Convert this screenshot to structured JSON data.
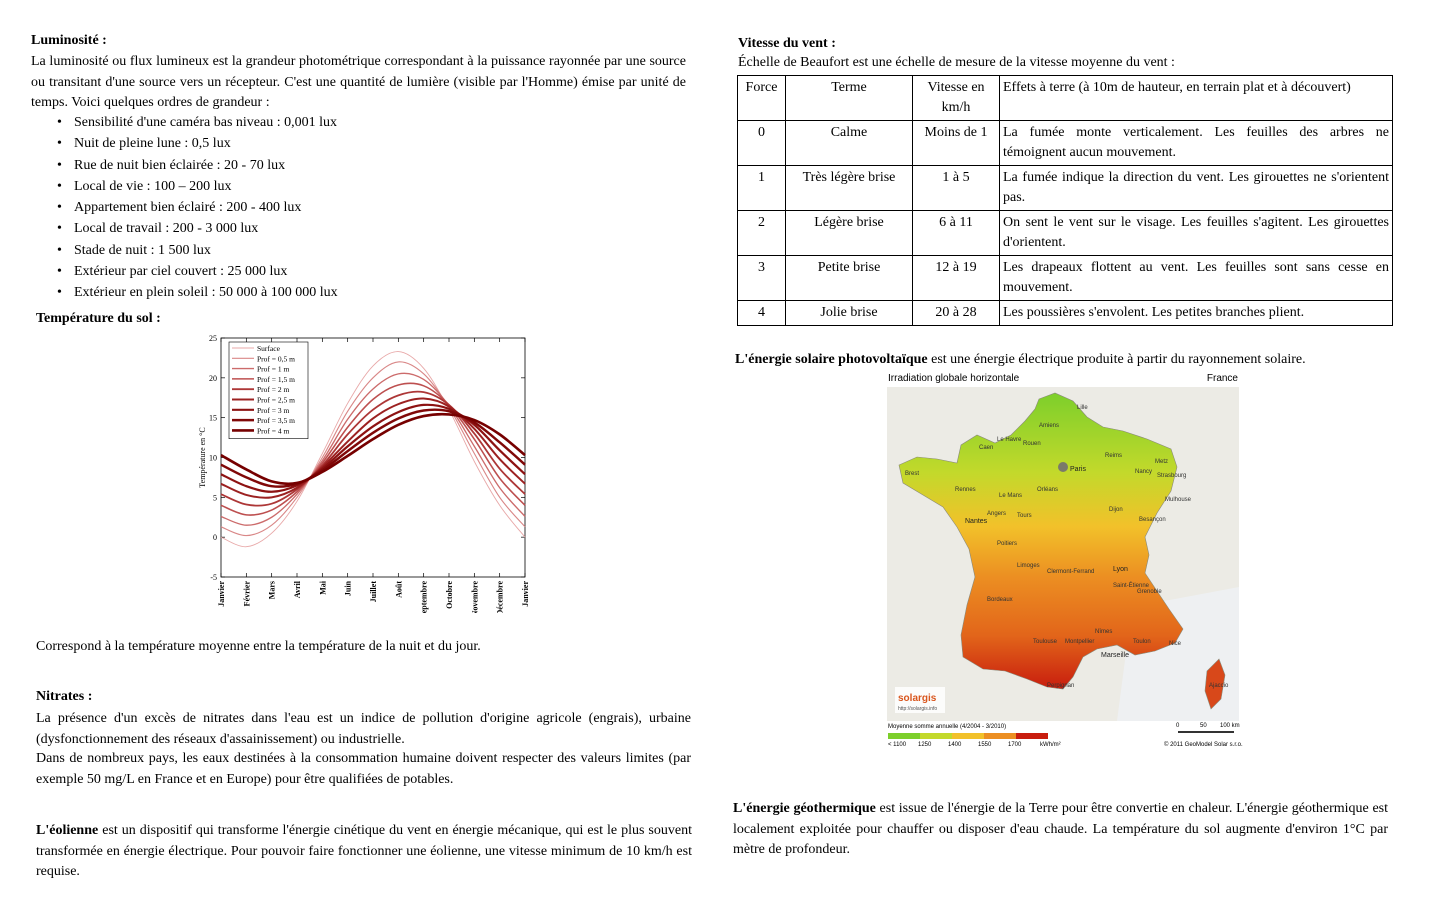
{
  "luminosite": {
    "title": "Luminosité :",
    "intro": "La luminosité ou flux lumineux est la grandeur photométrique correspondant à la puissance rayonnée   par une source ou transitant d'une source vers un récepteur. C'est une quantité de lumière (visible par l'Homme) émise par unité de temps. Voici quelques ordres de grandeur :",
    "items": [
      "Sensibilité d'une caméra bas niveau : 0,001 lux",
      "Nuit de pleine lune : 0,5 lux",
      "Rue de nuit bien éclairée : 20 - 70 lux",
      "Local de vie : 100 – 200 lux",
      "Appartement bien éclairé : 200 - 400 lux",
      "Local de travail : 200 - 3 000 lux",
      "Stade de nuit : 1 500 lux",
      "Extérieur par ciel couvert : 25 000 lux",
      "Extérieur en plein soleil : 50 000 à 100 000 lux"
    ]
  },
  "temperature": {
    "title": "Température du sol :",
    "caption": "Correspond à la température moyenne entre la température de la nuit et du jour."
  },
  "chart_data": {
    "type": "line",
    "ylabel": "Température en °C",
    "ylim": [
      -5,
      25
    ],
    "yticks": [
      "-5",
      "0",
      "5",
      "10",
      "15",
      "20",
      "25"
    ],
    "categories": [
      "Janvier",
      "Février",
      "Mars",
      "Avril",
      "Mai",
      "Juin",
      "Juillet",
      "Août",
      "Septembre",
      "Octobre",
      "Novembre",
      "Décembre",
      "Janvier"
    ],
    "legend_position": "top-left",
    "grid": false,
    "series": [
      {
        "name": "Surface",
        "color": "#e8a8a8",
        "values": [
          0.0,
          -1.2,
          0.5,
          4.5,
          10.5,
          16.8,
          21.5,
          23.3,
          21.2,
          16.0,
          9.5,
          4.0,
          0.0
        ]
      },
      {
        "name": "Prof = 0,5 m",
        "color": "#d98787",
        "values": [
          1.3,
          0.2,
          1.5,
          5.0,
          10.0,
          15.8,
          20.0,
          22.0,
          20.5,
          16.3,
          10.5,
          5.0,
          1.3
        ]
      },
      {
        "name": "Prof = 1 m",
        "color": "#cc6b6b",
        "values": [
          2.6,
          1.5,
          2.5,
          5.4,
          9.6,
          14.8,
          18.6,
          20.5,
          19.8,
          16.5,
          11.4,
          6.2,
          2.6
        ]
      },
      {
        "name": "Prof = 1,5 m",
        "color": "#bd4f4f",
        "values": [
          4.0,
          2.8,
          3.4,
          5.7,
          9.3,
          13.8,
          17.3,
          19.1,
          19.0,
          16.6,
          12.3,
          7.4,
          4.0
        ]
      },
      {
        "name": "Prof = 2 m",
        "color": "#ad3737",
        "values": [
          5.4,
          4.1,
          4.2,
          6.0,
          9.0,
          12.9,
          16.0,
          17.8,
          18.2,
          16.6,
          13.0,
          8.6,
          5.4
        ]
      },
      {
        "name": "Prof = 2,5 m",
        "color": "#9c2121",
        "values": [
          6.7,
          5.3,
          5.0,
          6.2,
          8.8,
          12.0,
          14.9,
          16.7,
          17.4,
          16.4,
          13.6,
          9.8,
          6.7
        ]
      },
      {
        "name": "Prof = 3 m",
        "color": "#8d1212",
        "values": [
          7.9,
          6.4,
          5.7,
          6.5,
          8.6,
          11.4,
          13.9,
          15.7,
          16.6,
          16.1,
          14.1,
          10.9,
          7.9
        ]
      },
      {
        "name": "Prof = 3,5 m",
        "color": "#800808",
        "values": [
          9.1,
          7.5,
          6.4,
          6.7,
          8.4,
          10.8,
          13.1,
          14.9,
          15.9,
          15.8,
          14.4,
          11.9,
          9.1
        ]
      },
      {
        "name": "Prof = 4 m",
        "color": "#760000",
        "values": [
          10.3,
          8.5,
          7.0,
          6.8,
          8.2,
          10.2,
          12.3,
          14.1,
          15.2,
          15.4,
          14.7,
          12.9,
          10.3
        ]
      }
    ]
  },
  "nitrates": {
    "title": "Nitrates :",
    "p1": "La présence d'un excès de nitrates dans l'eau est un indice de pollution d'origine agricole (engrais), urbaine (dysfonctionnement des réseaux d'assainissement) ou industrielle.",
    "p2": "Dans de nombreux pays, les eaux destinées à la consommation humaine doivent respecter des valeurs limites (par exemple 50 mg/L en France et en Europe) pour être qualifiées de potables."
  },
  "eolienne": {
    "term": "L'éolienne",
    "text": " est un dispositif qui transforme l'énergie cinétique du vent en énergie mécanique, qui est le plus souvent transformée en énergie électrique. Pour pouvoir faire fonctionner une éolienne, une vitesse minimum de 10 km/h est requise."
  },
  "vent": {
    "title": "Vitesse du vent :",
    "intro": "Échelle de Beaufort est une échelle de mesure de la vitesse moyenne du vent :",
    "headers": [
      "Force",
      "Terme",
      "Vitesse en km/h",
      "Effets à terre (à 10m de hauteur, en terrain plat et à découvert)"
    ],
    "rows": [
      [
        "0",
        "Calme",
        "Moins de 1",
        "La fumée monte verticalement. Les feuilles des arbres ne témoignent aucun mouvement."
      ],
      [
        "1",
        "Très légère brise",
        "1 à 5",
        "La fumée indique la direction du vent. Les girouettes ne s'orientent pas."
      ],
      [
        "2",
        "Légère brise",
        "6 à 11",
        "On sent le vent sur le visage. Les feuilles s'agitent. Les girouettes d'orientent."
      ],
      [
        "3",
        "Petite brise",
        "12 à 19",
        "Les drapeaux flottent au vent. Les feuilles sont sans cesse en mouvement."
      ],
      [
        "4",
        "Jolie brise",
        "20 à 28",
        "Les poussières s'envolent. Les petites branches plient."
      ]
    ]
  },
  "solaire": {
    "term": "L'énergie solaire photovoltaïque",
    "text": " est une énergie électrique produite à partir du rayonnement solaire.",
    "map": {
      "title": "Irradiation globale horizontale",
      "country": "France",
      "legend_title": "Moyenne somme annuelle (4/2004 - 3/2010)",
      "legend_values": [
        "< 1100",
        "1250",
        "1400",
        "1550",
        "1700"
      ],
      "legend_unit": "kWh/m²",
      "legend_colors": [
        "#7dcf2b",
        "#c3d92b",
        "#f2c12a",
        "#ec8f22",
        "#c81d0e"
      ],
      "scale": [
        "0",
        "50",
        "100 km"
      ],
      "copyright": "© 2011 GeoModel Solar s.r.o.",
      "logo": "solargis",
      "logo_url": "http://solargis.info",
      "cities": [
        "Paris",
        "Le Havre",
        "Caen",
        "Rouen",
        "Amiens",
        "Lille",
        "Reims",
        "Metz",
        "Nancy",
        "Strasbourg",
        "Brest",
        "Rennes",
        "Le Mans",
        "Nantes",
        "Angers",
        "Tours",
        "Orléans",
        "Dijon",
        "Besançon",
        "Mulhouse",
        "Poitiers",
        "Limoges",
        "Clermont-Ferrand",
        "Lyon",
        "Saint-Étienne",
        "Grenoble",
        "Bordeaux",
        "Toulouse",
        "Montpellier",
        "Nîmes",
        "Marseille",
        "Toulon",
        "Nice",
        "Perpignan",
        "Ajaccio"
      ]
    }
  },
  "geothermique": {
    "term": "L'énergie géothermique",
    "text": " est issue de l'énergie de la Terre pour être convertie en chaleur. L'énergie géothermique est localement exploitée pour chauffer ou disposer d'eau chaude. La température du sol augmente d'environ 1°C par mètre de profondeur."
  }
}
